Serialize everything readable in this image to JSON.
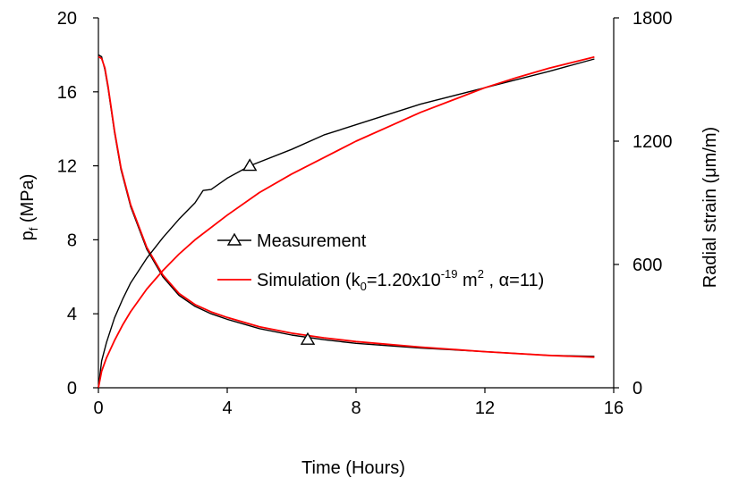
{
  "chart_data": {
    "type": "line",
    "xlabel": "Time (Hours)",
    "ylabel": "p",
    "ylabel_sub": "f",
    "ylabel_rest": " (MPa)",
    "y2label": "Radial strain (μm/m)",
    "xlim": [
      0,
      16
    ],
    "ylim": [
      0,
      20
    ],
    "y2lim": [
      0,
      1800
    ],
    "x_ticks": [
      "0",
      "4",
      "8",
      "12",
      "16"
    ],
    "y_ticks": [
      "0",
      "4",
      "8",
      "12",
      "16",
      "20"
    ],
    "y2_ticks": [
      "0",
      "600",
      "1200",
      "1800"
    ],
    "colors": {
      "measurement": "#000000",
      "simulation": "#ff0000"
    },
    "legend": {
      "measurement": "Measurement",
      "sim_prefix": "Simulation (k",
      "sim_sub": "0",
      "sim_mid": "=1.20x10",
      "sim_sup1": "-19",
      "sim_unit": " m",
      "sim_sup2": "2",
      "sim_suffix": " , α=11)"
    },
    "series": [
      {
        "role": "measurement-pressure",
        "axis": "left",
        "marker": "triangle",
        "x": [
          0,
          0.1,
          0.2,
          0.3,
          0.4,
          0.5,
          0.7,
          1.0,
          1.5,
          2.0,
          2.5,
          3.0,
          3.5,
          4.0,
          5.0,
          6.0,
          7.0,
          8.0,
          10.0,
          12.0,
          14.0,
          15.4
        ],
        "y": [
          18.0,
          17.9,
          17.2,
          16.2,
          15.0,
          13.8,
          11.8,
          9.8,
          7.5,
          6.0,
          5.0,
          4.4,
          4.0,
          3.7,
          3.2,
          2.85,
          2.6,
          2.4,
          2.15,
          1.95,
          1.75,
          1.7
        ]
      },
      {
        "role": "simulation-pressure",
        "axis": "left",
        "x": [
          0,
          0.1,
          0.2,
          0.3,
          0.4,
          0.5,
          0.7,
          1.0,
          1.5,
          2.0,
          2.5,
          3.0,
          3.5,
          4.0,
          5.0,
          6.0,
          7.0,
          8.0,
          10.0,
          12.0,
          14.0,
          15.4
        ],
        "y": [
          17.9,
          17.8,
          17.3,
          16.3,
          15.1,
          13.9,
          11.9,
          9.9,
          7.6,
          6.1,
          5.1,
          4.5,
          4.1,
          3.8,
          3.3,
          2.95,
          2.7,
          2.5,
          2.2,
          1.95,
          1.75,
          1.65
        ]
      },
      {
        "role": "measurement-strain",
        "axis": "right",
        "marker": "triangle",
        "x": [
          0,
          0.1,
          0.25,
          0.5,
          0.75,
          1.0,
          1.5,
          2.0,
          2.5,
          3.0,
          3.25,
          3.5,
          4.0,
          4.7,
          6.0,
          7.0,
          8.0,
          9.0,
          10.0,
          12.0,
          14.0,
          15.4
        ],
        "y": [
          0,
          130,
          220,
          340,
          430,
          510,
          630,
          730,
          820,
          900,
          960,
          965,
          1020,
          1080,
          1160,
          1230,
          1280,
          1330,
          1380,
          1460,
          1540,
          1600
        ]
      },
      {
        "role": "simulation-strain",
        "axis": "right",
        "x": [
          0,
          0.1,
          0.25,
          0.5,
          0.75,
          1.0,
          1.5,
          2.0,
          2.5,
          3.0,
          4.0,
          5.0,
          6.0,
          7.0,
          8.0,
          9.0,
          10.0,
          11.0,
          12.0,
          13.0,
          14.0,
          15.4
        ],
        "y": [
          0,
          80,
          145,
          230,
          305,
          370,
          480,
          570,
          650,
          720,
          840,
          950,
          1040,
          1120,
          1200,
          1270,
          1340,
          1400,
          1460,
          1510,
          1555,
          1610
        ]
      }
    ],
    "markers": [
      {
        "series": "measurement-strain",
        "x": 4.7,
        "y": 1080,
        "axis": "right"
      },
      {
        "series": "measurement-pressure",
        "x": 6.5,
        "y": 2.6,
        "axis": "left"
      }
    ]
  }
}
